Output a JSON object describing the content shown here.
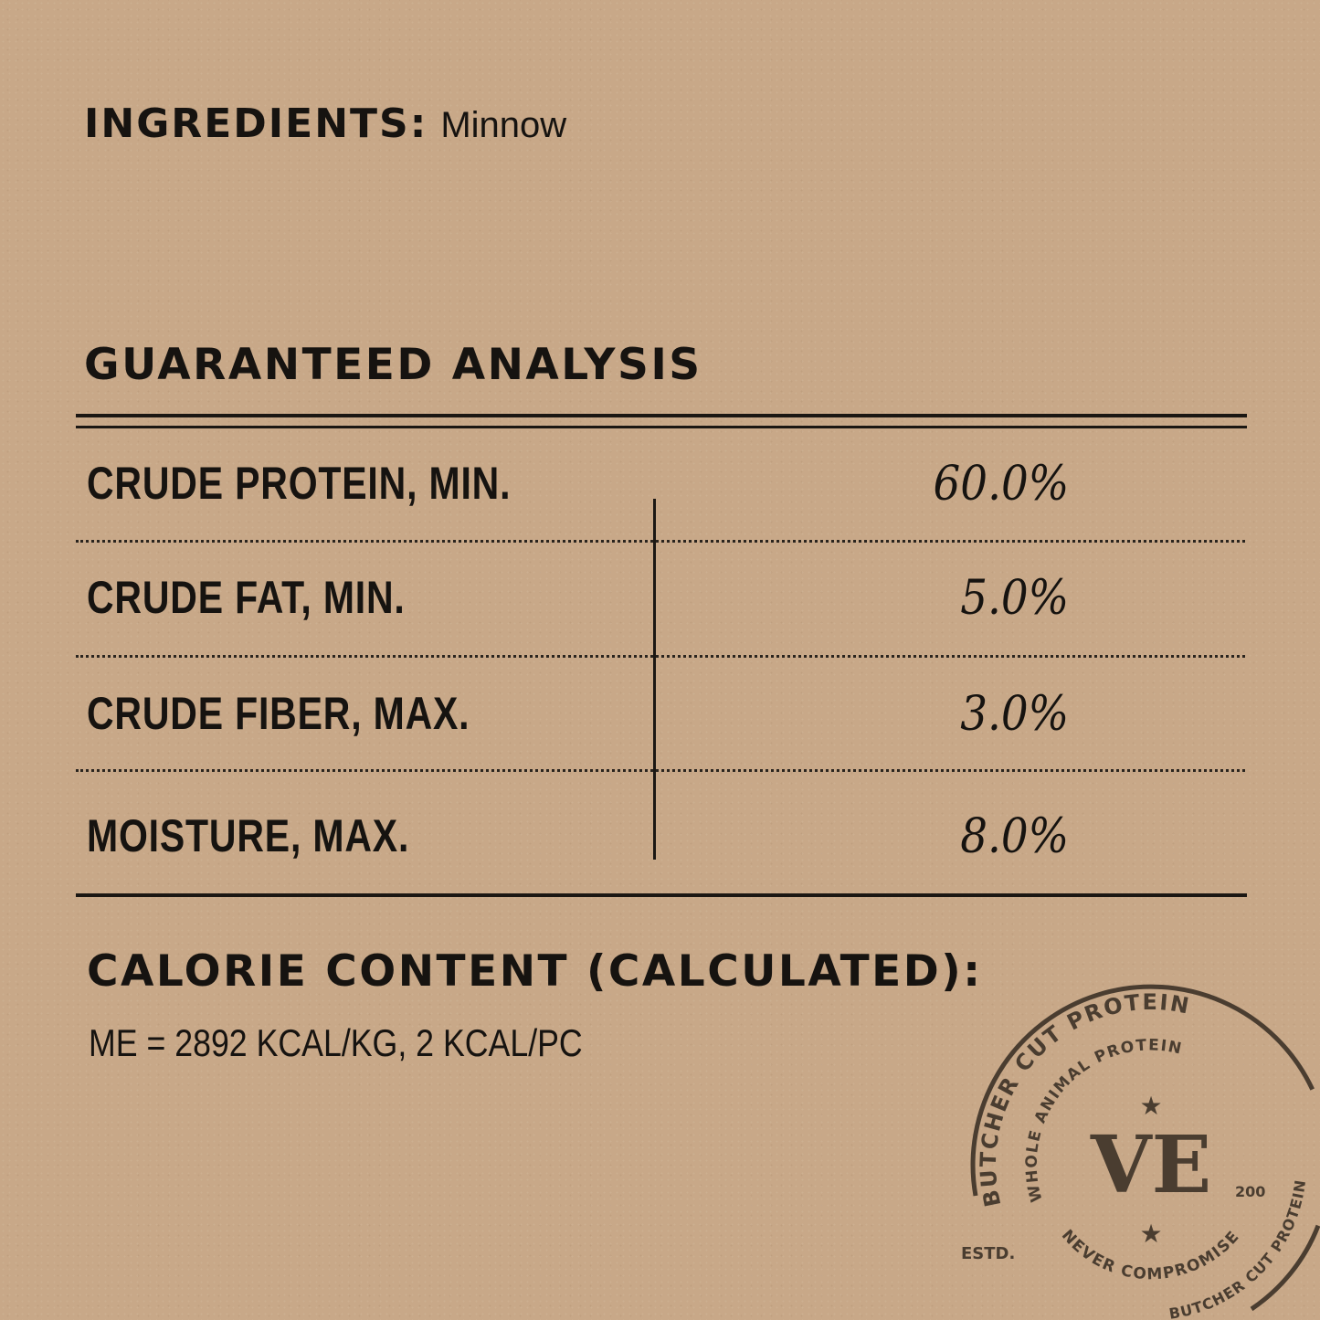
{
  "ingredients": {
    "label": "INGREDIENTS:",
    "value": "Minnow"
  },
  "analysis": {
    "title": "GUARANTEED ANALYSIS",
    "rows": [
      {
        "label": "CRUDE PROTEIN, MIN.",
        "value": "60.0%"
      },
      {
        "label": "CRUDE FAT, MIN.",
        "value": "5.0%"
      },
      {
        "label": "CRUDE FIBER, MAX.",
        "value": "3.0%"
      },
      {
        "label": "MOISTURE, MAX.",
        "value": "8.0%"
      }
    ]
  },
  "calorie": {
    "title": "CALORIE CONTENT (CALCULATED):",
    "value": "ME = 2892 KCAL/KG, 2 KCAL/PC"
  },
  "stamp": {
    "outer_top": "BUTCHER CUT PROTEIN",
    "inner_top": "WHOLE ANIMAL PROTEIN",
    "logo": "VE",
    "estd": "ESTD.",
    "year": "200",
    "inner_bottom": "NEVER COMPROMISE",
    "outer_bottom": "BUTCHER CUT PROTEIN",
    "ink_color": "#4a3d30"
  },
  "colors": {
    "background": "#c8a888",
    "text": "#161310"
  }
}
